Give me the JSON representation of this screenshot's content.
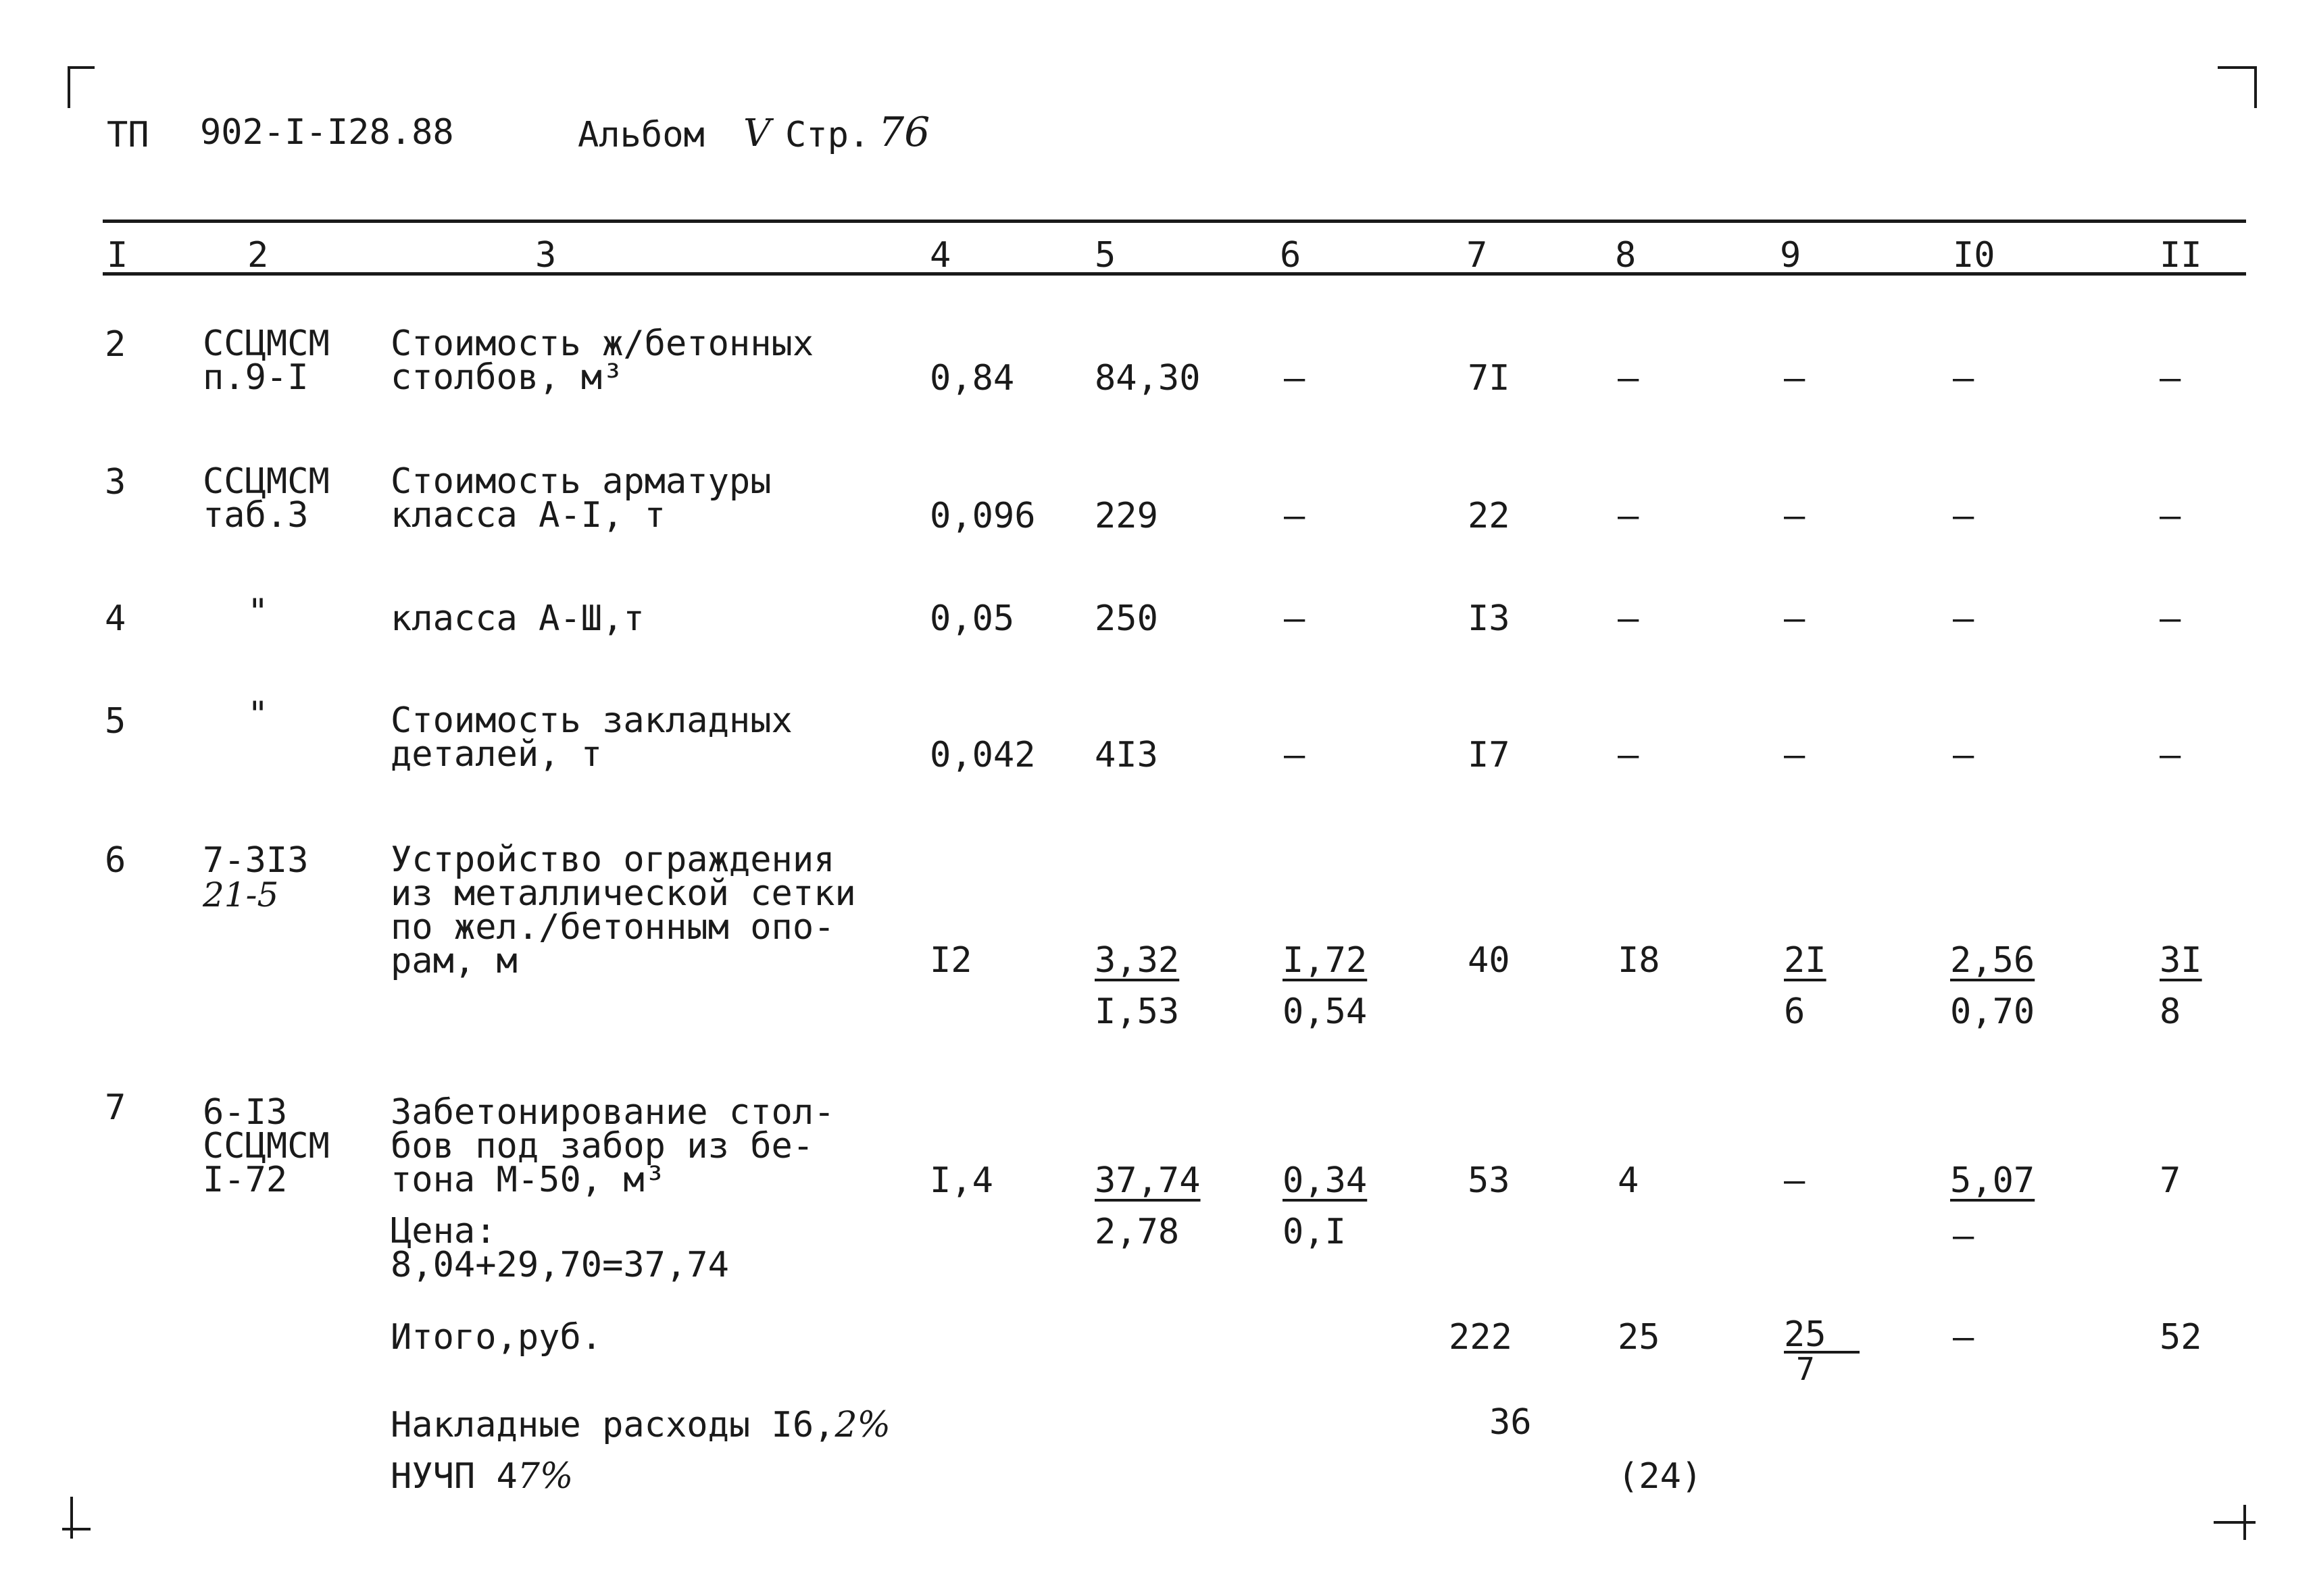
{
  "header": {
    "series": "ТП",
    "code": "902-I-I28.88",
    "album_label": "Альбом",
    "album_num": "V",
    "page_label": "Стр.",
    "page_num": "76"
  },
  "columns": [
    "I",
    "2",
    "3",
    "4",
    "5",
    "6",
    "7",
    "8",
    "9",
    "I0",
    "II"
  ],
  "rows": [
    {
      "num": "2",
      "code": [
        "ССЦМСМ",
        "п.9-I"
      ],
      "desc": [
        "Стоимость ж/бетонных",
        "столбов, м³"
      ],
      "qty": "0,84",
      "price": "84,30",
      "c6": "–",
      "total": "7I",
      "c8": "–",
      "c9": "–",
      "c10": "–",
      "c11": "–"
    },
    {
      "num": "3",
      "code": [
        "ССЦМСМ",
        "таб.3"
      ],
      "desc": [
        "Стоимость арматуры",
        "класса А-I, т"
      ],
      "qty": "0,096",
      "price": "229",
      "c6": "–",
      "total": "22",
      "c8": "–",
      "c9": "–",
      "c10": "–",
      "c11": "–"
    },
    {
      "num": "4",
      "code": [
        "\""
      ],
      "desc": [
        "класса А-Ш,т"
      ],
      "qty": "0,05",
      "price": "250",
      "c6": "–",
      "total": "I3",
      "c8": "–",
      "c9": "–",
      "c10": "–",
      "c11": "–"
    },
    {
      "num": "5",
      "code": [
        "\""
      ],
      "desc": [
        "Стоимость закладных",
        "деталей, т"
      ],
      "qty": "0,042",
      "price": "4I3",
      "c6": "–",
      "total": "I7",
      "c8": "–",
      "c9": "–",
      "c10": "–",
      "c11": "–"
    },
    {
      "num": "6",
      "code": [
        "7-3I3"
      ],
      "code_hand": "21-5",
      "desc": [
        "Устройство ограждения",
        "из металлической сетки",
        "по жел./бетонным опо-",
        "рам, м"
      ],
      "qty": "I2",
      "price": "3,32",
      "price_sub": "I,53",
      "c6": "I,72",
      "c6_sub": "0,54",
      "total": "40",
      "c8": "I8",
      "c9": "2I",
      "c9_sub": "6",
      "c10": "2,56",
      "c10_sub": "0,70",
      "c11": "3I",
      "c11_sub": "8"
    },
    {
      "num": "7",
      "code": [
        "6-I3",
        "ССЦМСМ",
        "I-72"
      ],
      "desc": [
        "Забетонирование стол-",
        "бов под забор из бе-",
        "тона М-50, м³"
      ],
      "desc_extra": [
        "Цена:",
        "8,04+29,70=37,74"
      ],
      "qty": "I,4",
      "price": "37,74",
      "price_sub": "2,78",
      "c6": "0,34",
      "c6_sub": "0,I",
      "total": "53",
      "c8": "4",
      "c9": "–",
      "c10": "5,07",
      "c10_sub": "–",
      "c11": "7"
    }
  ],
  "totals": {
    "label": "Итого,руб.",
    "total": "222",
    "c8": "25",
    "c9": "25",
    "c9_sub": "7",
    "c10": "–",
    "c11": "52"
  },
  "overhead": {
    "label": "Накладные расходы I6,",
    "pct": "2%",
    "value": "36"
  },
  "profit": {
    "label": "НУЧП 4",
    "pct": "7%",
    "value": "(24)"
  }
}
